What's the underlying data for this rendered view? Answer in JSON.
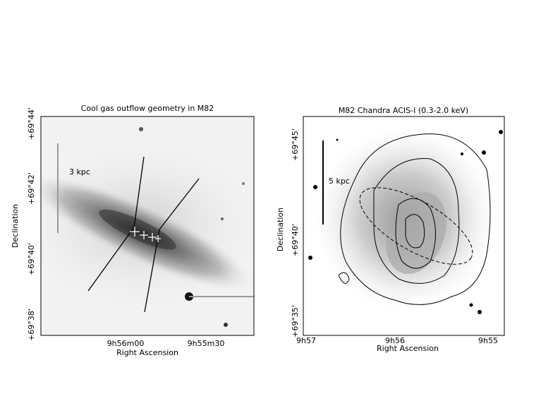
{
  "left_panel": {
    "title": "Cool gas outflow geometry in M82",
    "x_label": "Right Ascension",
    "y_label": "Declination",
    "x_ticks": [
      "9h56m00",
      "9h55m30"
    ],
    "y_ticks": [
      "+69°44'",
      "+69°42'",
      "+69°40'",
      "+69°38'"
    ],
    "scale_label": "3 kpc"
  },
  "right_panel": {
    "title": "M82 Chandra ACIS-I (0.3-2.0 keV)",
    "x_label": "Right Ascension",
    "y_label": "Declination",
    "x_ticks": [
      "9h57",
      "9h56",
      "9h55"
    ],
    "y_ticks": [
      "+69°45'",
      "+69°40'",
      "+69°35'"
    ],
    "scale_label": "5 kpc"
  }
}
